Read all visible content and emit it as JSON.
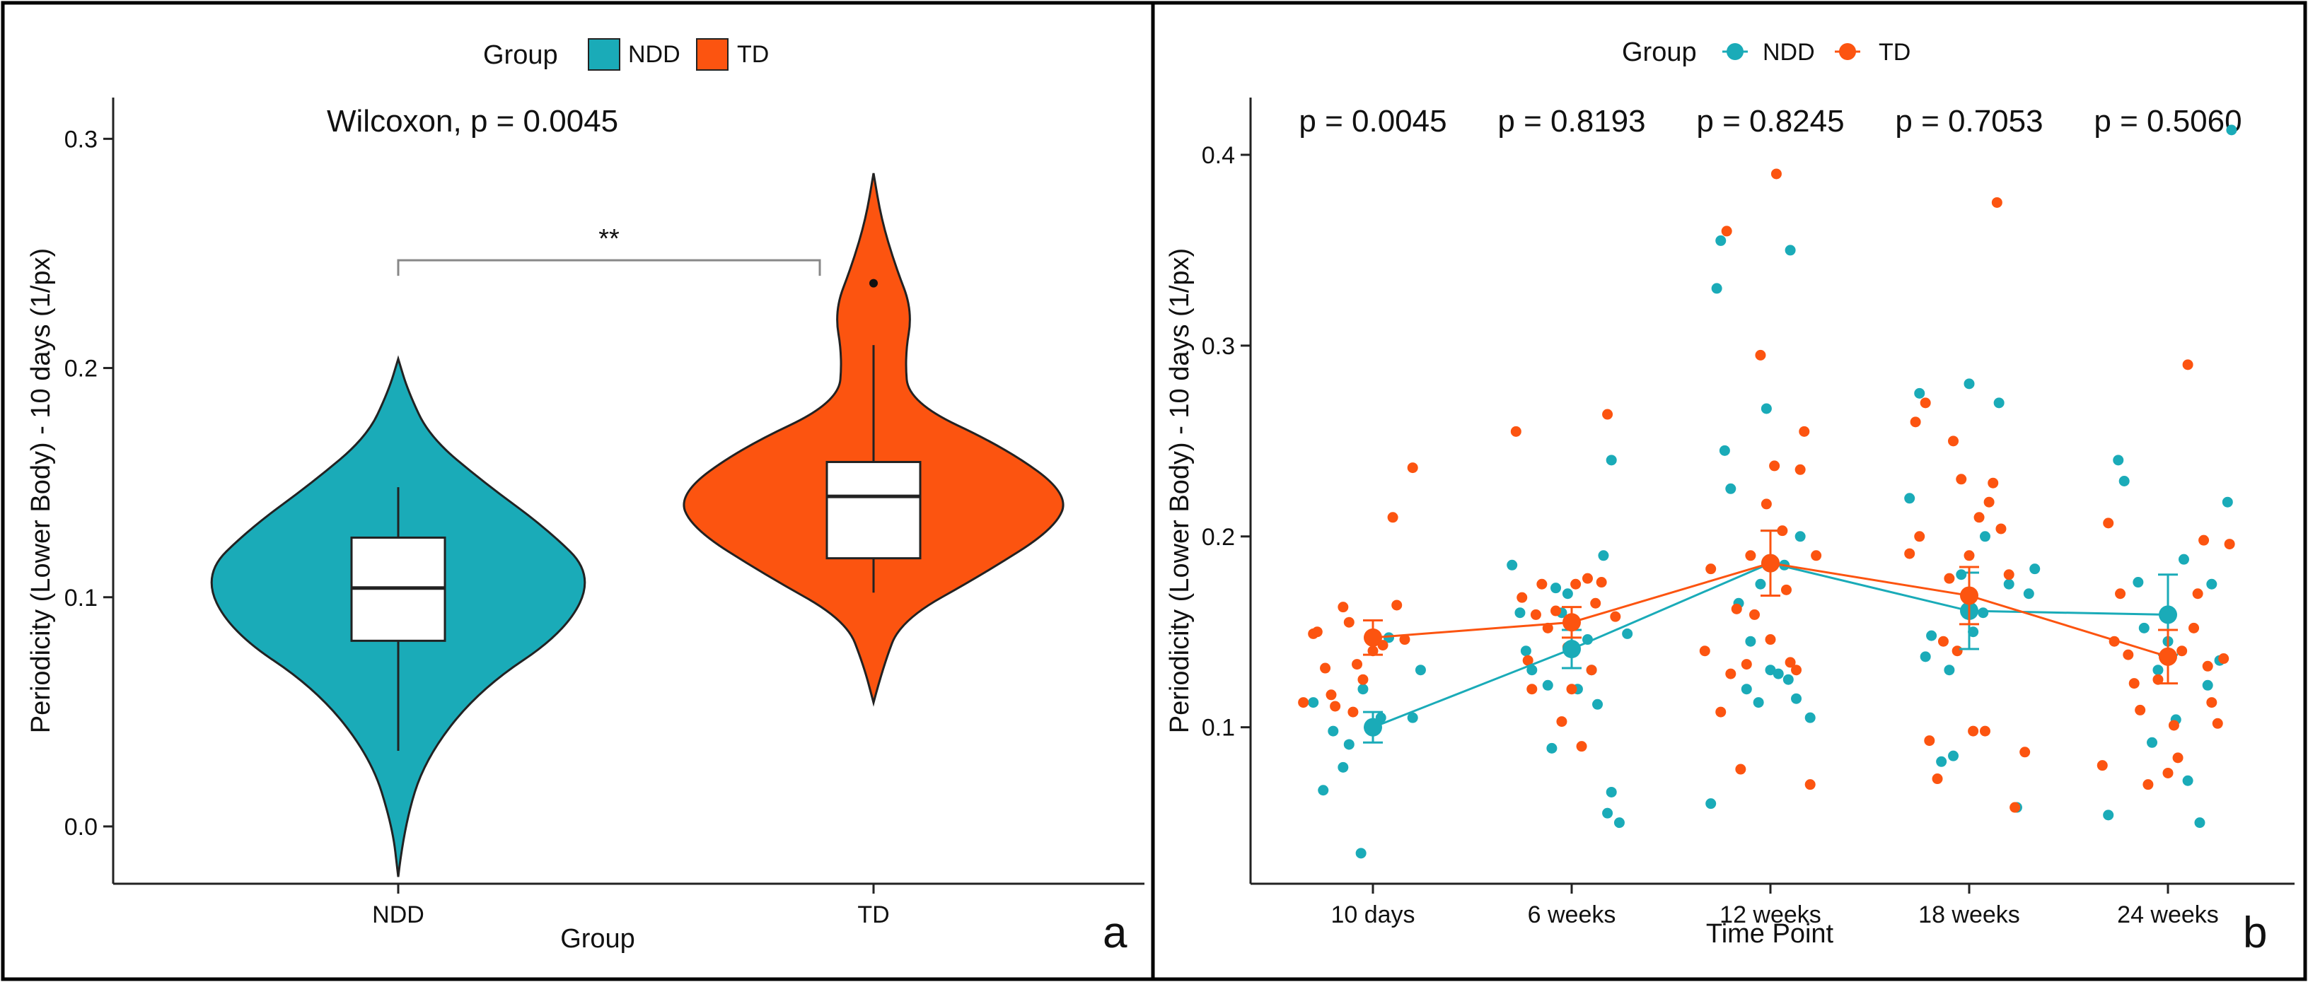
{
  "chart_data": [
    {
      "panel": "a",
      "type": "violin",
      "legend": {
        "title": "Group",
        "entries": [
          "NDD",
          "TD"
        ],
        "placement": "top-center"
      },
      "annotation": "Wilcoxon, p = 0.0045",
      "significance": "**",
      "xlabel": "Group",
      "ylabel": "Periodicity (Lower Body) - 10 days (1/px)",
      "categories": [
        "NDD",
        "TD"
      ],
      "ylim": [
        -0.025,
        0.318
      ],
      "yticks": [
        0.0,
        0.1,
        0.2,
        0.3
      ],
      "ytick_labels": [
        "0.0",
        "0.1",
        "0.2",
        "0.3"
      ],
      "series": [
        {
          "name": "NDD",
          "color": "#1aabb8",
          "box": {
            "whisker_low": 0.033,
            "q1": 0.081,
            "median": 0.104,
            "q3": 0.126,
            "whisker_high": 0.148
          },
          "density_y": [
            -0.022,
            0.0,
            0.03,
            0.06,
            0.085,
            0.11,
            0.13,
            0.15,
            0.17,
            0.19,
            0.204
          ],
          "density_w": [
            0,
            0.03,
            0.14,
            0.42,
            0.86,
            1.0,
            0.76,
            0.44,
            0.16,
            0.05,
            0
          ]
        },
        {
          "name": "TD",
          "color": "#fc5410",
          "box": {
            "whisker_low": 0.102,
            "q1": 0.117,
            "median": 0.144,
            "q3": 0.159,
            "whisker_high": 0.21
          },
          "outliers": [
            0.237
          ],
          "density_y": [
            0.054,
            0.07,
            0.09,
            0.11,
            0.13,
            0.145,
            0.165,
            0.185,
            0.205,
            0.225,
            0.245,
            0.265,
            0.285
          ],
          "density_w": [
            0,
            0.05,
            0.14,
            0.56,
            0.93,
            1.0,
            0.68,
            0.18,
            0.16,
            0.2,
            0.11,
            0.04,
            0
          ]
        }
      ]
    },
    {
      "panel": "b",
      "type": "scatter",
      "legend": {
        "title": "Group",
        "entries": [
          "NDD",
          "TD"
        ],
        "placement": "top-center"
      },
      "xlabel": "Time Point",
      "ylabel": "Periodicity (Lower Body) - 10 days (1/px)",
      "categories": [
        "10 days",
        "6 weeks",
        "12 weeks",
        "18 weeks",
        "24 weeks"
      ],
      "p_values": [
        "p = 0.0045",
        "p = 0.8193",
        "p = 0.8245",
        "p = 0.7053",
        "p = 0.5060"
      ],
      "ylim": [
        0.018,
        0.43
      ],
      "yticks": [
        0.1,
        0.2,
        0.3,
        0.4
      ],
      "ytick_labels": [
        "0.1",
        "0.2",
        "0.3",
        "0.4"
      ],
      "series": [
        {
          "name": "NDD",
          "color": "#1aabb8",
          "means": [
            0.1,
            0.141,
            0.186,
            0.161,
            0.159
          ],
          "errors": [
            0.008,
            0.01,
            0.017,
            0.02,
            0.021
          ],
          "points": [
            [
              -0.3,
              0.113
            ],
            [
              -0.25,
              0.067
            ],
            [
              -0.2,
              0.098
            ],
            [
              -0.15,
              0.079
            ],
            [
              -0.12,
              0.091
            ],
            [
              -0.06,
              0.034
            ],
            [
              -0.05,
              0.12
            ],
            [
              0.0,
              0.145
            ],
            [
              0.04,
              0.105
            ],
            [
              0.08,
              0.147
            ],
            [
              0.2,
              0.105
            ],
            [
              0.24,
              0.13
            ],
            [
              -0.3,
              0.185
            ],
            [
              -0.26,
              0.16
            ],
            [
              -0.23,
              0.14
            ],
            [
              -0.2,
              0.13
            ],
            [
              -0.12,
              0.122
            ],
            [
              -0.1,
              0.089
            ],
            [
              -0.08,
              0.173
            ],
            [
              -0.05,
              0.16
            ],
            [
              -0.02,
              0.17
            ],
            [
              0.03,
              0.12
            ],
            [
              0.08,
              0.146
            ],
            [
              0.1,
              0.13
            ],
            [
              0.13,
              0.112
            ],
            [
              0.16,
              0.19
            ],
            [
              0.18,
              0.055
            ],
            [
              0.2,
              0.24
            ],
            [
              0.2,
              0.066
            ],
            [
              0.24,
              0.05
            ],
            [
              0.28,
              0.149
            ],
            [
              -0.3,
              0.06
            ],
            [
              -0.27,
              0.33
            ],
            [
              -0.25,
              0.355
            ],
            [
              -0.23,
              0.245
            ],
            [
              -0.2,
              0.225
            ],
            [
              -0.16,
              0.165
            ],
            [
              -0.12,
              0.12
            ],
            [
              -0.1,
              0.145
            ],
            [
              -0.06,
              0.113
            ],
            [
              -0.05,
              0.175
            ],
            [
              -0.02,
              0.267
            ],
            [
              0.0,
              0.13
            ],
            [
              0.04,
              0.128
            ],
            [
              0.07,
              0.185
            ],
            [
              0.09,
              0.125
            ],
            [
              0.1,
              0.35
            ],
            [
              0.13,
              0.115
            ],
            [
              0.15,
              0.2
            ],
            [
              0.2,
              0.105
            ],
            [
              -0.3,
              0.22
            ],
            [
              -0.25,
              0.275
            ],
            [
              -0.22,
              0.137
            ],
            [
              -0.19,
              0.148
            ],
            [
              -0.14,
              0.082
            ],
            [
              -0.1,
              0.13
            ],
            [
              -0.08,
              0.085
            ],
            [
              -0.04,
              0.18
            ],
            [
              0.0,
              0.28
            ],
            [
              0.02,
              0.15
            ],
            [
              0.07,
              0.16
            ],
            [
              0.08,
              0.2
            ],
            [
              0.15,
              0.27
            ],
            [
              0.2,
              0.175
            ],
            [
              0.24,
              0.058
            ],
            [
              0.3,
              0.17
            ],
            [
              0.33,
              0.183
            ],
            [
              -0.3,
              0.054
            ],
            [
              -0.25,
              0.24
            ],
            [
              -0.22,
              0.229
            ],
            [
              -0.15,
              0.176
            ],
            [
              -0.12,
              0.152
            ],
            [
              -0.08,
              0.092
            ],
            [
              -0.05,
              0.13
            ],
            [
              0.0,
              0.145
            ],
            [
              0.04,
              0.104
            ],
            [
              0.08,
              0.188
            ],
            [
              0.1,
              0.072
            ],
            [
              0.16,
              0.05
            ],
            [
              0.2,
              0.122
            ],
            [
              0.22,
              0.175
            ],
            [
              0.26,
              0.135
            ],
            [
              0.3,
              0.218
            ],
            [
              0.32,
              0.413
            ]
          ]
        },
        {
          "name": "TD",
          "color": "#fc5410",
          "means": [
            0.147,
            0.155,
            0.186,
            0.169,
            0.137
          ],
          "errors": [
            0.009,
            0.008,
            0.017,
            0.015,
            0.014
          ],
          "points": [
            [
              -0.35,
              0.113
            ],
            [
              -0.3,
              0.149
            ],
            [
              -0.28,
              0.15
            ],
            [
              -0.24,
              0.131
            ],
            [
              -0.21,
              0.117
            ],
            [
              -0.19,
              0.111
            ],
            [
              -0.15,
              0.163
            ],
            [
              -0.12,
              0.155
            ],
            [
              -0.1,
              0.108
            ],
            [
              -0.08,
              0.133
            ],
            [
              -0.05,
              0.125
            ],
            [
              0.0,
              0.14
            ],
            [
              0.05,
              0.143
            ],
            [
              0.1,
              0.21
            ],
            [
              0.12,
              0.164
            ],
            [
              0.16,
              0.146
            ],
            [
              0.2,
              0.236
            ],
            [
              -0.28,
              0.255
            ],
            [
              -0.25,
              0.168
            ],
            [
              -0.22,
              0.135
            ],
            [
              -0.2,
              0.12
            ],
            [
              -0.18,
              0.159
            ],
            [
              -0.15,
              0.175
            ],
            [
              -0.12,
              0.152
            ],
            [
              -0.08,
              0.161
            ],
            [
              -0.05,
              0.103
            ],
            [
              -0.02,
              0.142
            ],
            [
              0.0,
              0.12
            ],
            [
              0.02,
              0.175
            ],
            [
              0.05,
              0.09
            ],
            [
              0.08,
              0.178
            ],
            [
              0.1,
              0.13
            ],
            [
              0.12,
              0.165
            ],
            [
              0.15,
              0.176
            ],
            [
              0.18,
              0.264
            ],
            [
              0.22,
              0.158
            ],
            [
              -0.33,
              0.14
            ],
            [
              -0.3,
              0.183
            ],
            [
              -0.25,
              0.108
            ],
            [
              -0.22,
              0.36
            ],
            [
              -0.2,
              0.128
            ],
            [
              -0.17,
              0.162
            ],
            [
              -0.15,
              0.078
            ],
            [
              -0.12,
              0.133
            ],
            [
              -0.1,
              0.19
            ],
            [
              -0.08,
              0.159
            ],
            [
              -0.05,
              0.295
            ],
            [
              -0.02,
              0.217
            ],
            [
              0.0,
              0.146
            ],
            [
              0.02,
              0.237
            ],
            [
              0.03,
              0.39
            ],
            [
              0.06,
              0.203
            ],
            [
              0.08,
              0.172
            ],
            [
              0.1,
              0.134
            ],
            [
              0.13,
              0.13
            ],
            [
              0.15,
              0.235
            ],
            [
              0.17,
              0.255
            ],
            [
              0.2,
              0.07
            ],
            [
              0.23,
              0.19
            ],
            [
              -0.3,
              0.191
            ],
            [
              -0.27,
              0.26
            ],
            [
              -0.25,
              0.2
            ],
            [
              -0.22,
              0.27
            ],
            [
              -0.2,
              0.093
            ],
            [
              -0.16,
              0.073
            ],
            [
              -0.13,
              0.145
            ],
            [
              -0.1,
              0.178
            ],
            [
              -0.08,
              0.25
            ],
            [
              -0.06,
              0.14
            ],
            [
              -0.04,
              0.23
            ],
            [
              0.0,
              0.19
            ],
            [
              0.02,
              0.098
            ],
            [
              0.05,
              0.21
            ],
            [
              0.08,
              0.098
            ],
            [
              0.1,
              0.218
            ],
            [
              0.12,
              0.228
            ],
            [
              0.14,
              0.375
            ],
            [
              0.16,
              0.204
            ],
            [
              0.2,
              0.18
            ],
            [
              0.23,
              0.058
            ],
            [
              0.28,
              0.087
            ],
            [
              -0.33,
              0.08
            ],
            [
              -0.3,
              0.207
            ],
            [
              -0.27,
              0.145
            ],
            [
              -0.24,
              0.17
            ],
            [
              -0.2,
              0.138
            ],
            [
              -0.17,
              0.123
            ],
            [
              -0.14,
              0.109
            ],
            [
              -0.1,
              0.07
            ],
            [
              -0.05,
              0.125
            ],
            [
              0.0,
              0.076
            ],
            [
              0.03,
              0.101
            ],
            [
              0.05,
              0.084
            ],
            [
              0.07,
              0.14
            ],
            [
              0.1,
              0.29
            ],
            [
              0.13,
              0.152
            ],
            [
              0.15,
              0.17
            ],
            [
              0.18,
              0.198
            ],
            [
              0.2,
              0.132
            ],
            [
              0.22,
              0.113
            ],
            [
              0.25,
              0.102
            ],
            [
              0.28,
              0.136
            ],
            [
              0.31,
              0.196
            ]
          ]
        }
      ]
    }
  ],
  "panel_letters": [
    "a",
    "b"
  ],
  "colors": {
    "ndd": "#1aabb8",
    "td": "#fc5410",
    "frame": "#000000"
  }
}
